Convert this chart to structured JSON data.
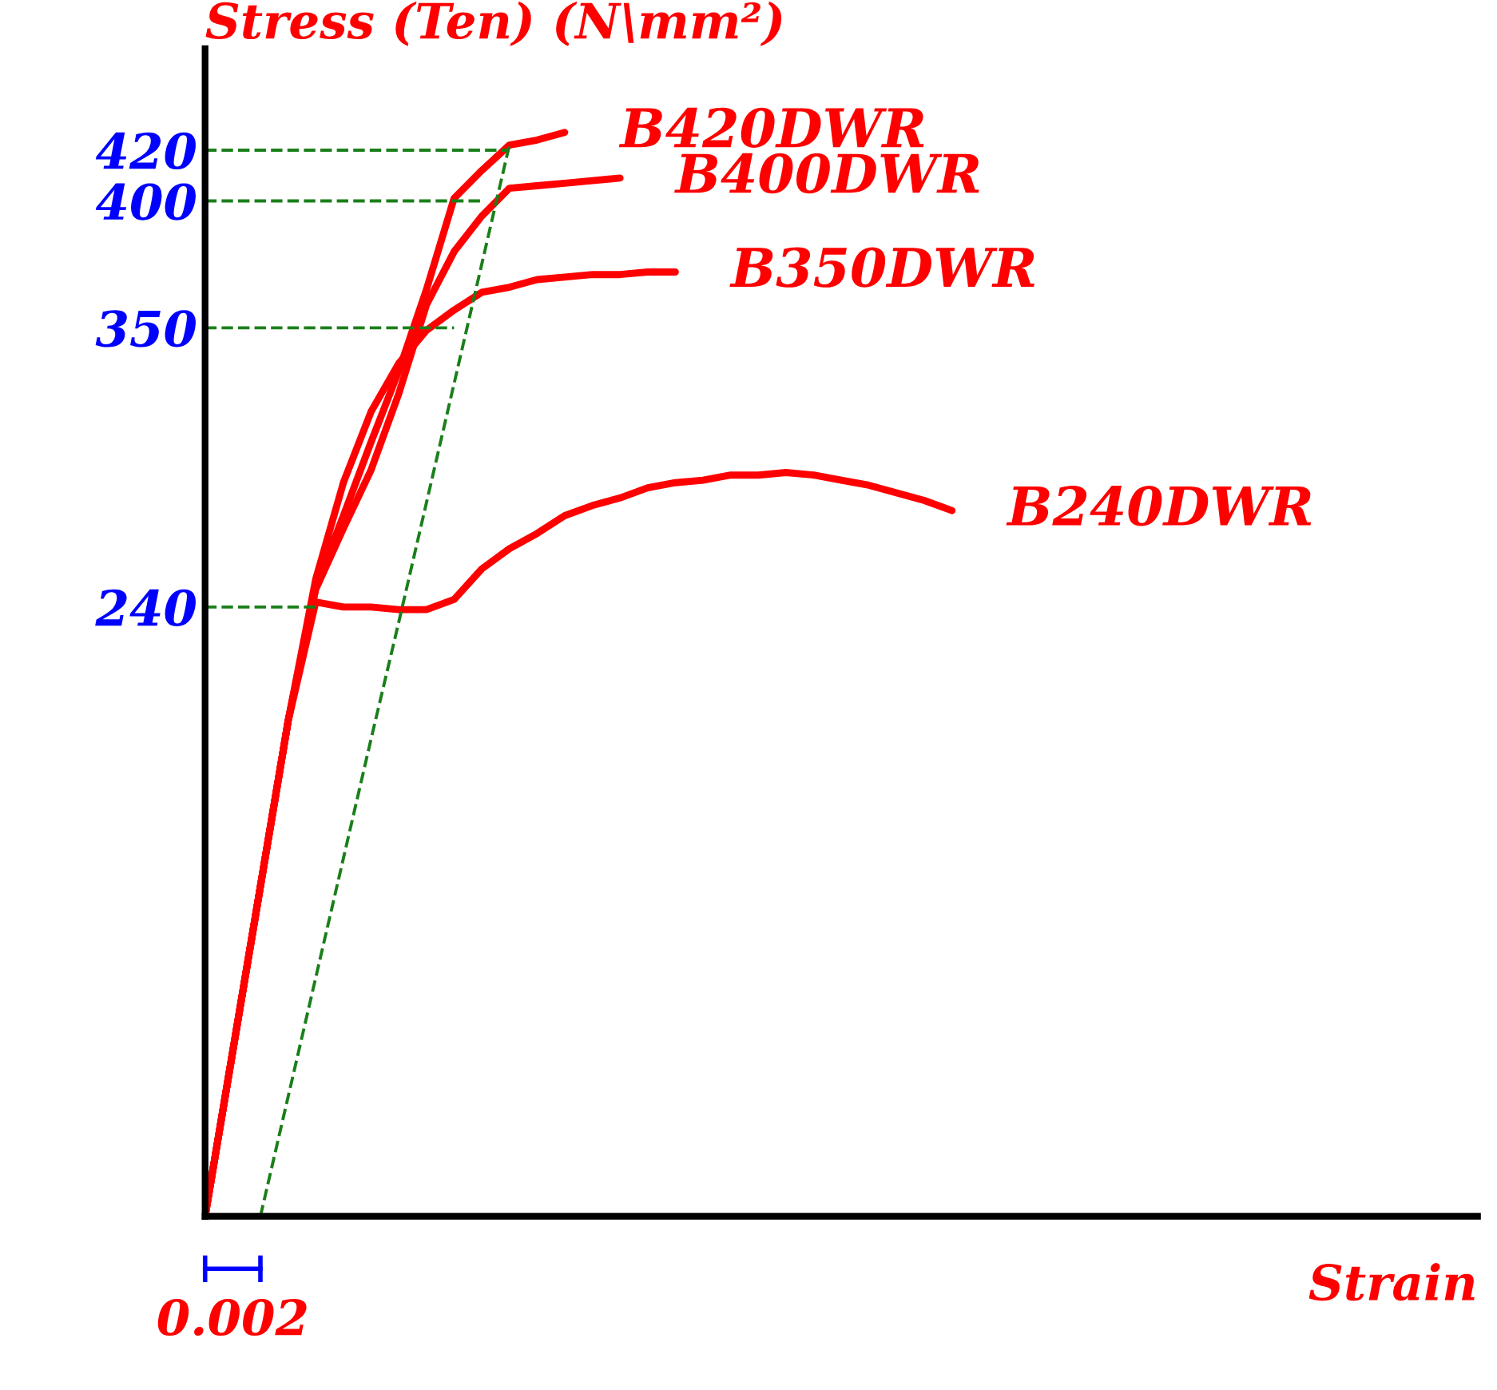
{
  "chart_data": {
    "type": "line",
    "ylabel": "Stress (Ten) (N\\mm²)",
    "xlabel": "Strain",
    "categories": [
      null,
      null,
      null,
      null,
      null,
      null,
      null,
      null,
      null,
      null,
      null,
      null,
      null,
      null,
      null,
      null,
      null,
      null,
      null,
      null,
      null,
      null,
      null,
      null,
      null,
      null,
      null,
      null,
      null,
      null,
      null,
      null,
      null,
      null,
      null,
      null,
      null,
      null,
      null,
      null,
      null,
      null,
      null,
      null,
      null,
      null,
      null
    ],
    "ylim": [
      0,
      460
    ],
    "yticks": [
      240,
      350,
      400,
      420
    ],
    "tick_labels": "y",
    "grid": false,
    "legend": false,
    "marker": "none",
    "annotations": [
      "0.002"
    ],
    "series": [
      {
        "name": "B420DWR",
        "color": "#ff0000",
        "line_style": "solid",
        "values": [
          0,
          65,
          130,
          195,
          248,
          276,
          305,
          333,
          365,
          401,
          412,
          422,
          424,
          427,
          null,
          null,
          null,
          null,
          null,
          null,
          null,
          null,
          null,
          null,
          null,
          null,
          null,
          null,
          null,
          null,
          null,
          null,
          null,
          null,
          null,
          null,
          null,
          null,
          null,
          null,
          null,
          null,
          null,
          null,
          null,
          null,
          null
        ]
      },
      {
        "name": "B400DWR",
        "color": "#ff0000",
        "line_style": "solid",
        "values": [
          0,
          65,
          130,
          195,
          247,
          271,
          294,
          324,
          359,
          380,
          394,
          405,
          406,
          407,
          408,
          409,
          null,
          null,
          null,
          null,
          null,
          null,
          null,
          null,
          null,
          null,
          null,
          null,
          null,
          null,
          null,
          null,
          null,
          null,
          null,
          null,
          null,
          null,
          null,
          null,
          null,
          null,
          null,
          null,
          null,
          null,
          null
        ]
      },
      {
        "name": "B350DWR",
        "color": "#ff0000",
        "line_style": "solid",
        "values": [
          0,
          65,
          130,
          195,
          251,
          289,
          317,
          336,
          349,
          357,
          364,
          366,
          369,
          370,
          371,
          371,
          372,
          372,
          null,
          null,
          null,
          null,
          null,
          null,
          null,
          null,
          null,
          null,
          null,
          null,
          null,
          null,
          null,
          null,
          null,
          null,
          null,
          null,
          null,
          null,
          null,
          null,
          null,
          null,
          null,
          null,
          null
        ]
      },
      {
        "name": "B240DWR",
        "color": "#ff0000",
        "line_style": "solid",
        "values": [
          0,
          65,
          130,
          195,
          242,
          240,
          240,
          239,
          239,
          243,
          255,
          263,
          269,
          276,
          280,
          283,
          287,
          289,
          290,
          292,
          292,
          293,
          292,
          290,
          288,
          285,
          282,
          278,
          null,
          null,
          null,
          null,
          null,
          null,
          null,
          null,
          null,
          null,
          null,
          null,
          null,
          null,
          null,
          null,
          null,
          null,
          null
        ]
      },
      {
        "color": "#1a7f1a",
        "line_style": "dashed",
        "values": [
          null,
          null,
          0,
          47,
          94,
          141,
          188,
          234,
          281,
          328,
          375,
          422,
          null,
          null,
          null,
          null,
          null,
          null,
          null,
          null,
          null,
          null,
          null,
          null,
          null,
          null,
          null,
          null,
          null,
          null,
          null,
          null,
          null,
          null,
          null,
          null,
          null,
          null,
          null,
          null,
          null,
          null,
          null,
          null,
          null,
          null,
          null
        ]
      },
      {
        "color": "#1a7f1a",
        "line_style": "dashed",
        "values": [
          420,
          420,
          420,
          420,
          420,
          420,
          420,
          420,
          420,
          420,
          420,
          420,
          null,
          null,
          null,
          null,
          null,
          null,
          null,
          null,
          null,
          null,
          null,
          null,
          null,
          null,
          null,
          null,
          null,
          null,
          null,
          null,
          null,
          null,
          null,
          null,
          null,
          null,
          null,
          null,
          null,
          null,
          null,
          null,
          null,
          null,
          null
        ]
      },
      {
        "color": "#1a7f1a",
        "line_style": "dashed",
        "values": [
          400,
          400,
          400,
          400,
          400,
          400,
          400,
          400,
          400,
          400,
          400,
          null,
          null,
          null,
          null,
          null,
          null,
          null,
          null,
          null,
          null,
          null,
          null,
          null,
          null,
          null,
          null,
          null,
          null,
          null,
          null,
          null,
          null,
          null,
          null,
          null,
          null,
          null,
          null,
          null,
          null,
          null,
          null,
          null,
          null,
          null,
          null
        ]
      },
      {
        "color": "#1a7f1a",
        "line_style": "dashed",
        "values": [
          350,
          350,
          350,
          350,
          350,
          350,
          350,
          350,
          350,
          350,
          null,
          null,
          null,
          null,
          null,
          null,
          null,
          null,
          null,
          null,
          null,
          null,
          null,
          null,
          null,
          null,
          null,
          null,
          null,
          null,
          null,
          null,
          null,
          null,
          null,
          null,
          null,
          null,
          null,
          null,
          null,
          null,
          null,
          null,
          null,
          null,
          null
        ]
      },
      {
        "color": "#1a7f1a",
        "line_style": "dashed",
        "values": [
          240,
          240,
          240,
          240,
          240,
          null,
          null,
          null,
          null,
          null,
          null,
          null,
          null,
          null,
          null,
          null,
          null,
          null,
          null,
          null,
          null,
          null,
          null,
          null,
          null,
          null,
          null,
          null,
          null,
          null,
          null,
          null,
          null,
          null,
          null,
          null,
          null,
          null,
          null,
          null,
          null,
          null,
          null,
          null,
          null,
          null,
          null
        ]
      }
    ]
  }
}
